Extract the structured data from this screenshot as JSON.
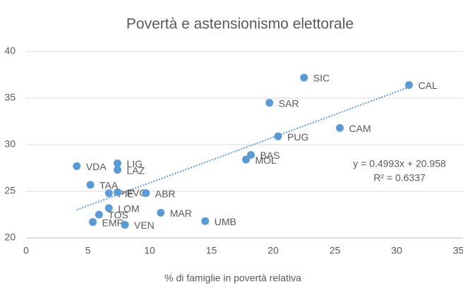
{
  "chart_data": {
    "type": "scatter",
    "title": "Povertà e astensionismo elettorale",
    "x_label": "% di famiglie in povertà relativa",
    "point_labels": [
      "SIC",
      "CAL",
      "SAR",
      "PUG",
      "CAM",
      "BAS",
      "MOL",
      "LIG",
      "LAZ",
      "VDA",
      "TAA",
      "PIE",
      "FVG",
      "ABR",
      "LOM",
      "TOS",
      "EMR",
      "VEN",
      "MAR",
      "UMB"
    ],
    "x": [
      22.5,
      31.0,
      19.7,
      20.4,
      25.4,
      18.2,
      17.8,
      7.4,
      7.4,
      4.1,
      5.2,
      6.7,
      7.4,
      9.7,
      6.7,
      5.9,
      5.4,
      8.0,
      10.9,
      14.5
    ],
    "values": [
      37.2,
      36.4,
      34.5,
      30.9,
      31.8,
      28.9,
      28.4,
      28.0,
      27.3,
      27.7,
      25.7,
      24.8,
      24.9,
      24.8,
      23.2,
      22.5,
      21.7,
      21.4,
      22.7,
      21.8
    ],
    "color": "#5b9bd5",
    "trendline": {
      "equation": "y = 0.4993x + 20.958",
      "r_squared": "R² = 0.6337"
    },
    "xlim": [
      0,
      35
    ],
    "xticks": [
      0,
      5,
      10,
      15,
      20,
      25,
      30,
      35
    ],
    "ylim": [
      20,
      40
    ],
    "yticks": [
      20,
      25,
      30,
      35,
      40
    ],
    "grid": true
  }
}
